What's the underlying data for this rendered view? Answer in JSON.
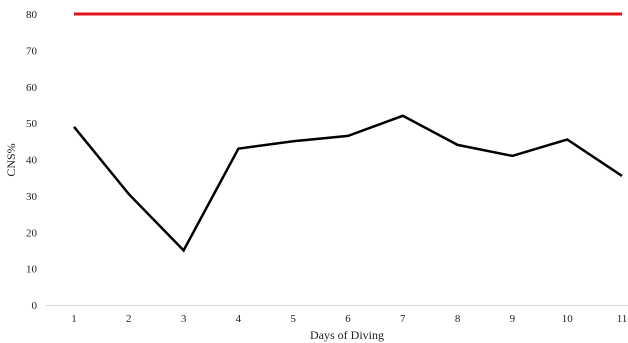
{
  "chart_data": {
    "type": "line",
    "xlabel": "Days of Diving",
    "ylabel": "CNS%",
    "ylim": [
      0,
      80
    ],
    "yticks": [
      0,
      10,
      20,
      30,
      40,
      50,
      60,
      70,
      80
    ],
    "categories": [
      "1",
      "2",
      "3",
      "4",
      "5",
      "6",
      "7",
      "8",
      "9",
      "10",
      "11"
    ],
    "series": [
      {
        "values": [
          49,
          30.5,
          15,
          43,
          45,
          46.5,
          52,
          44,
          41,
          45.5,
          35.5
        ],
        "color": "#000000"
      },
      {
        "values": [
          80,
          80,
          80,
          80,
          80,
          80,
          80,
          80,
          80,
          80,
          80
        ],
        "color": "#e0161c"
      }
    ],
    "grid": false,
    "legend": "none"
  }
}
